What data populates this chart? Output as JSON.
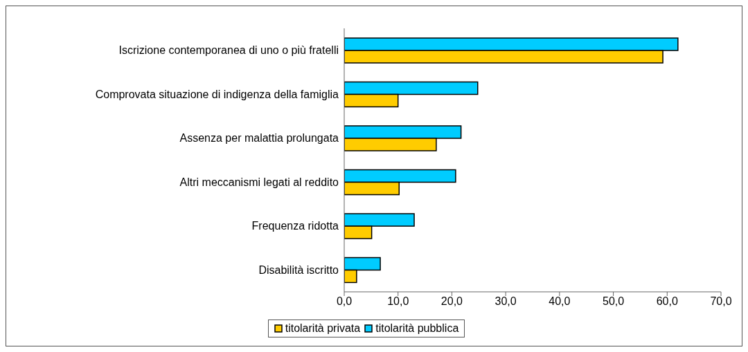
{
  "chart_data": {
    "type": "bar",
    "orientation": "horizontal",
    "categories": [
      "Iscrizione contemporanea di uno o più fratelli",
      "Comprovata situazione di indigenza della famiglia",
      "Assenza per malattia prolungata",
      "Altri meccanismi legati al reddito",
      "Frequenza ridotta",
      "Disabilità iscritto"
    ],
    "series": [
      {
        "name": "titolarità privata",
        "color": "#ffcc00",
        "values": [
          59.2,
          10.0,
          17.1,
          10.2,
          5.1,
          2.3
        ]
      },
      {
        "name": "titolarità pubblica",
        "color": "#00ccff",
        "values": [
          62.0,
          24.8,
          21.7,
          20.7,
          13.0,
          6.7
        ]
      }
    ],
    "xlim": [
      0,
      70
    ],
    "xticks": [
      {
        "value": 0,
        "label": "0,0"
      },
      {
        "value": 10,
        "label": "10,0"
      },
      {
        "value": 20,
        "label": "20,0"
      },
      {
        "value": 30,
        "label": "30,0"
      },
      {
        "value": 40,
        "label": "40,0"
      },
      {
        "value": 50,
        "label": "50,0"
      },
      {
        "value": 60,
        "label": "60,0"
      },
      {
        "value": 70,
        "label": "70,0"
      }
    ],
    "legend": "bottom",
    "grid": false
  }
}
